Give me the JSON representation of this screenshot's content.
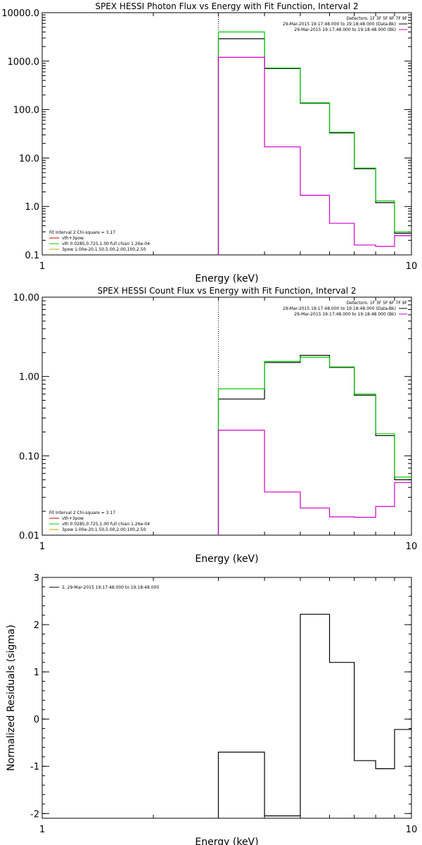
{
  "colors": {
    "black": "#000000",
    "green": "#00cc00",
    "magenta": "#cc00cc",
    "red": "#cc0000",
    "orange": "#cc9900"
  },
  "chart_data": [
    {
      "type": "line",
      "title": "SPEX HESSI Photon Flux vs Energy with Fit Function, Interval 2",
      "xlabel": "Energy (keV)",
      "ylabel": "",
      "xscale": "log",
      "yscale": "log",
      "xlim": [
        1,
        10
      ],
      "ylim": [
        0.1,
        10000
      ],
      "xticks": [
        {
          "v": 1,
          "label": "1"
        },
        {
          "v": 10,
          "label": "10"
        }
      ],
      "yticks": [
        {
          "v": 10000,
          "label": "10000.0"
        },
        {
          "v": 1000,
          "label": "1000.0"
        },
        {
          "v": 100,
          "label": "100.0"
        },
        {
          "v": 10,
          "label": "10.0"
        },
        {
          "v": 1,
          "label": "1.0"
        },
        {
          "v": 0.1,
          "label": "0.1"
        }
      ],
      "vline": 3,
      "edges": [
        3,
        4,
        5,
        6,
        7,
        8,
        9,
        10
      ],
      "series": [
        {
          "color": "#000000",
          "values": [
            2900,
            700,
            135,
            33,
            6,
            1.2,
            0.28
          ]
        },
        {
          "color": "#00cc00",
          "values": [
            4000,
            720,
            138,
            34,
            6.2,
            1.3,
            0.3
          ]
        },
        {
          "color": "#cc00cc",
          "values": [
            1200,
            17,
            1.7,
            0.45,
            0.16,
            0.15,
            0.25
          ]
        }
      ],
      "detectors": "Detectors: 1F 3F 5F 6F 7F 9F",
      "legend_right": [
        {
          "text": "29-Mar-2015 19:17:48.000 to 19:18:48.000 (Data-Bk)",
          "color": "#000000"
        },
        {
          "text": "29-Mar-2015 19:17:48.000 to 19:18:48.000 (Bk)",
          "color": "#cc00cc"
        }
      ],
      "legend_left": [
        {
          "text": "Fit Interval 2   Chi-square = 3.17",
          "color": ""
        },
        {
          "text": "vth+3pow",
          "color": "#cc0000"
        },
        {
          "text": "vth 0.0285,0.725,1.00  full chian 1.26e-04",
          "color": "#00cc00"
        },
        {
          "text": "3pow 1.00e-20,1.50,5.00,2.00,100,2.50",
          "color": "#cc9900"
        }
      ]
    },
    {
      "type": "line",
      "title": "SPEX HESSI Count Flux vs Energy with Fit Function, Interval 2",
      "xlabel": "Energy (keV)",
      "ylabel": "",
      "xscale": "log",
      "yscale": "log",
      "xlim": [
        1,
        10
      ],
      "ylim": [
        0.01,
        10
      ],
      "xticks": [
        {
          "v": 1,
          "label": "1"
        },
        {
          "v": 10,
          "label": "10"
        }
      ],
      "yticks": [
        {
          "v": 10,
          "label": "10.00"
        },
        {
          "v": 1,
          "label": "1.00"
        },
        {
          "v": 0.1,
          "label": "0.10"
        },
        {
          "v": 0.01,
          "label": "0.01"
        }
      ],
      "vline": 3,
      "edges": [
        3,
        4,
        5,
        6,
        7,
        8,
        9,
        10
      ],
      "series": [
        {
          "color": "#000000",
          "values": [
            0.52,
            1.5,
            1.85,
            1.3,
            0.58,
            0.18,
            0.05
          ]
        },
        {
          "color": "#00cc00",
          "values": [
            0.7,
            1.55,
            1.75,
            1.32,
            0.6,
            0.19,
            0.054
          ]
        },
        {
          "color": "#cc00cc",
          "values": [
            0.21,
            0.035,
            0.022,
            0.017,
            0.0168,
            0.023,
            0.046
          ]
        }
      ],
      "detectors": "Detectors: 1F 3F 5F 6F 7F 9F",
      "legend_right": [
        {
          "text": "29-Mar-2015 19:17:48.000 to 19:18:48.000 (Data-Bk)",
          "color": "#000000"
        },
        {
          "text": "29-Mar-2015 19:17:48.000 to 19:18:48.000 (Bk)",
          "color": "#cc00cc"
        }
      ],
      "legend_left": [
        {
          "text": "Fit Interval 2   Chi-square = 3.17",
          "color": ""
        },
        {
          "text": "vth+3pow",
          "color": "#cc0000"
        },
        {
          "text": "vth 0.0285,0.725,1.00  full chian 1.26e-04",
          "color": "#00cc00"
        },
        {
          "text": "3pow 1.00e-20,1.50,5.00,2.00,100,2.50",
          "color": "#cc9900"
        }
      ]
    },
    {
      "type": "line",
      "title": "",
      "xlabel": "Energy (keV)",
      "ylabel": "Normalized Residuals (sigma)",
      "xscale": "log",
      "yscale": "linear",
      "xlim": [
        1,
        10
      ],
      "ylim": [
        -2.1,
        3
      ],
      "xticks": [
        {
          "v": 1,
          "label": "1"
        },
        {
          "v": 10,
          "label": "10"
        }
      ],
      "yticks": [
        {
          "v": 3,
          "label": "3"
        },
        {
          "v": 2,
          "label": "2"
        },
        {
          "v": 1,
          "label": "1"
        },
        {
          "v": 0,
          "label": "0"
        },
        {
          "v": -1,
          "label": "-1"
        },
        {
          "v": -2,
          "label": "-2"
        }
      ],
      "edges": [
        3,
        4,
        5,
        6,
        7,
        8,
        9,
        10
      ],
      "series": [
        {
          "color": "#000000",
          "values": [
            -0.7,
            -2.05,
            2.22,
            1.2,
            -0.88,
            -1.05,
            -0.22
          ]
        }
      ],
      "legend_left": [
        {
          "text": "2. 29-Mar-2015 19:17:48.000 to 19:18:48.000",
          "color": "#000000"
        }
      ]
    }
  ]
}
